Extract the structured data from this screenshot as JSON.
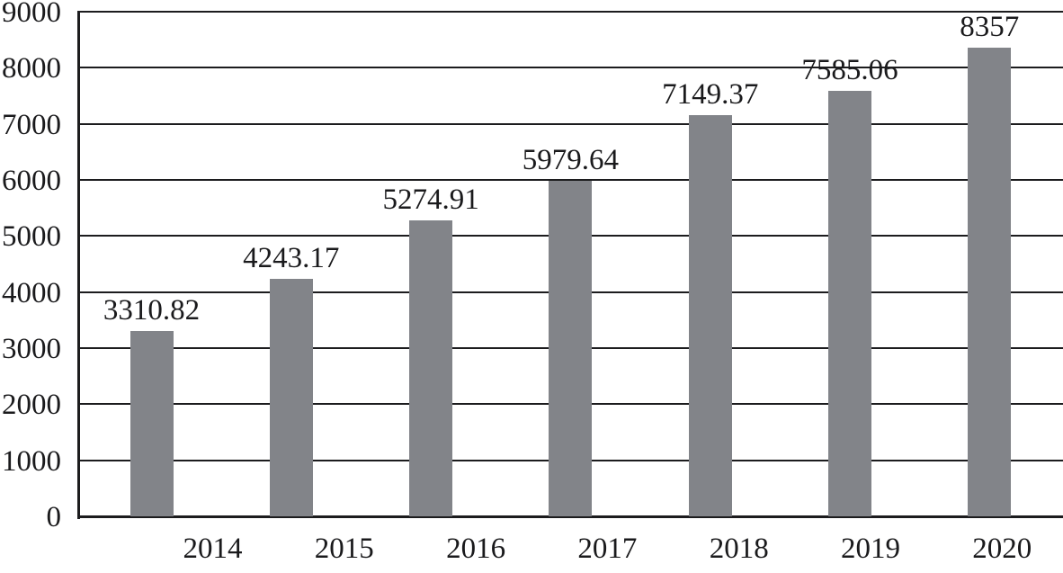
{
  "chart_data": {
    "type": "bar",
    "categories": [
      "2014",
      "2015",
      "2016",
      "2017",
      "2018",
      "2019",
      "2020"
    ],
    "values": [
      3310.82,
      4243.17,
      5274.91,
      5979.64,
      7149.37,
      7585.06,
      8357
    ],
    "value_labels": [
      "3310.82",
      "4243.17",
      "5274.91",
      "5979.64",
      "7149.37",
      "7585.06",
      "8357"
    ],
    "title": "",
    "xlabel": "",
    "ylabel": "",
    "ylim": [
      0,
      9000
    ],
    "y_ticks": [
      0,
      1000,
      2000,
      3000,
      4000,
      5000,
      6000,
      7000,
      8000,
      9000
    ],
    "y_tick_labels": [
      "0",
      "1000",
      "2000",
      "3000",
      "4000",
      "5000",
      "6000",
      "7000",
      "8000",
      "9000"
    ],
    "grid": true,
    "legend": false,
    "bar_color": "#828489",
    "grid_color": "#1c1c1e",
    "axis_color": "#1c1c1e",
    "text_color": "#1a1a1c"
  }
}
